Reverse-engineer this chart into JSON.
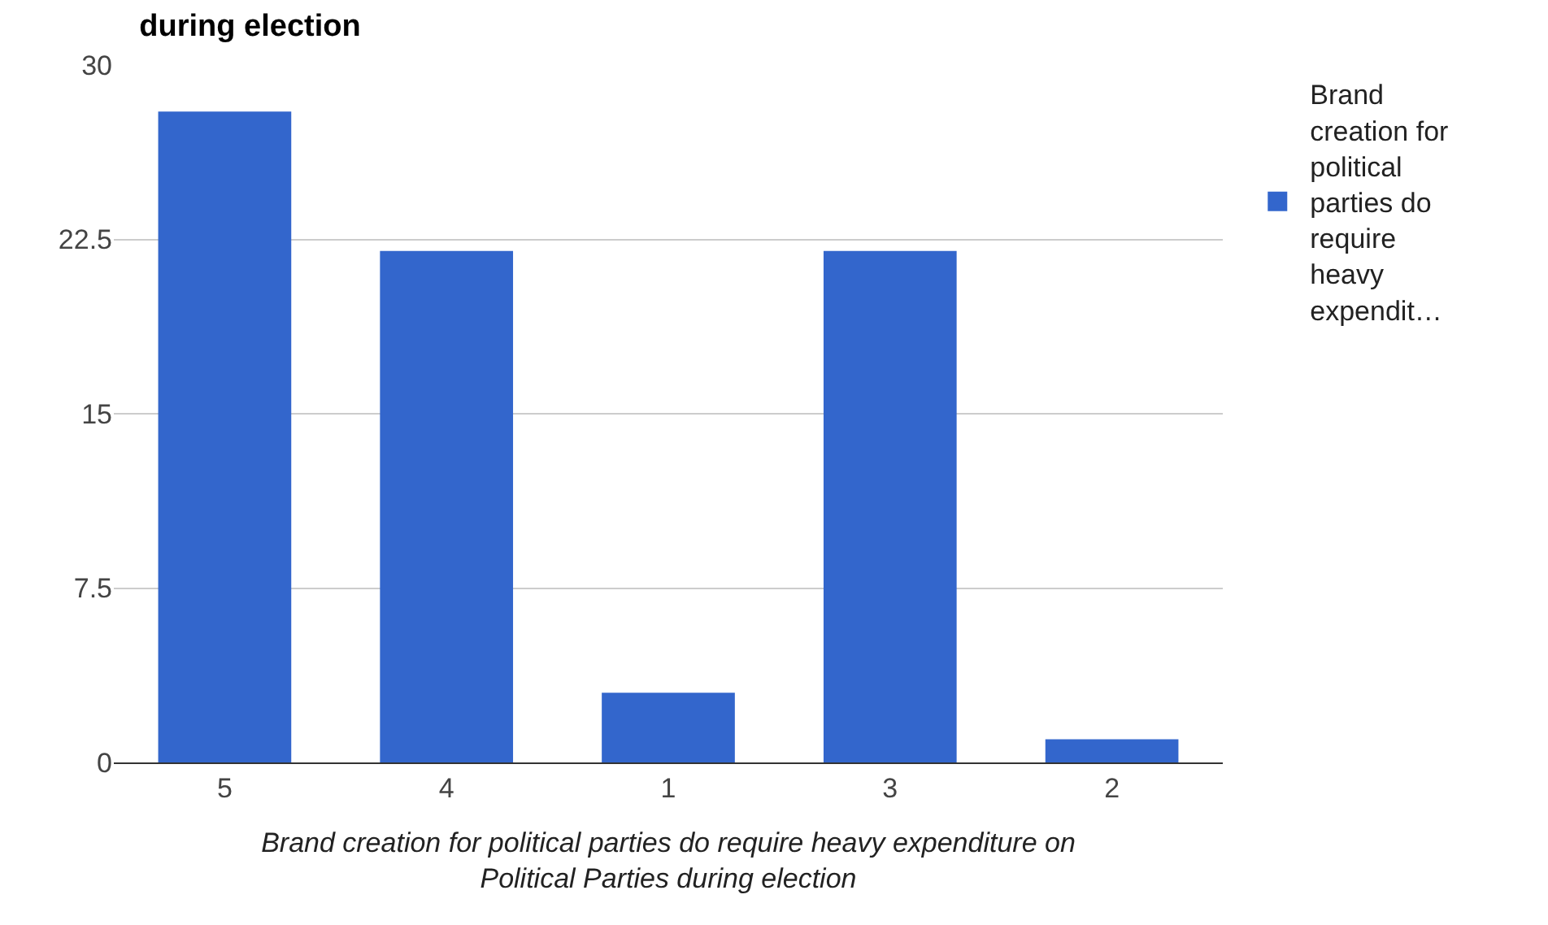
{
  "chart_data": {
    "type": "bar",
    "title": "during election",
    "categories": [
      "5",
      "4",
      "1",
      "3",
      "2"
    ],
    "series": [
      {
        "name": "Brand creation for political parties do require heavy expendit…",
        "color": "#3366cc",
        "values": [
          28,
          22,
          3,
          22,
          1
        ]
      }
    ],
    "xlabel": "Brand creation for political parties do require heavy expenditure on Political Parties during election",
    "ylim": [
      0,
      30
    ],
    "yticks": [
      0,
      7.5,
      15,
      22.5,
      30
    ],
    "grid": "y",
    "legend": "top right"
  }
}
